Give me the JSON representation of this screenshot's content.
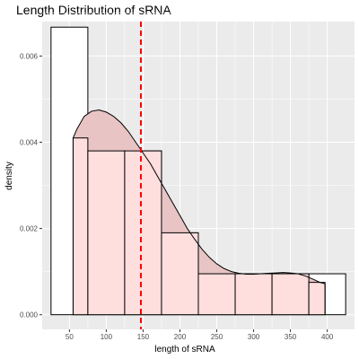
{
  "chart_data": {
    "type": "histogram",
    "title": "Length Distribution of sRNA",
    "xlabel": "length of sRNA",
    "ylabel": "density",
    "xlim": [
      13,
      437
    ],
    "ylim": [
      -0.00034,
      0.0068
    ],
    "x_ticks": [
      50,
      100,
      150,
      200,
      250,
      300,
      350,
      400
    ],
    "x_tick_labels": [
      "50",
      "100",
      "150",
      "200",
      "250",
      "300",
      "350",
      "400"
    ],
    "y_ticks": [
      0,
      0.002,
      0.004,
      0.006
    ],
    "y_tick_labels": [
      "0.000",
      "0.002",
      "0.004",
      "0.006"
    ],
    "grid": true,
    "legend": "none",
    "histogram_white": {
      "name": "",
      "bins": [
        {
          "x0": 25,
          "x1": 75,
          "density": 0.00667
        },
        {
          "x0": 75,
          "x1": 125,
          "density": 0.0038
        },
        {
          "x0": 125,
          "x1": 175,
          "density": 0.0038
        },
        {
          "x0": 175,
          "x1": 225,
          "density": 0.0019
        },
        {
          "x0": 225,
          "x1": 275,
          "density": 0.00095
        },
        {
          "x0": 275,
          "x1": 325,
          "density": 0.00095
        },
        {
          "x0": 325,
          "x1": 375,
          "density": 0.00095
        },
        {
          "x0": 375,
          "x1": 425,
          "density": 0.00095
        }
      ]
    },
    "histogram_pink": {
      "name": "",
      "bins": [
        {
          "x0": 55,
          "x1": 75,
          "density": 0.0041
        },
        {
          "x0": 75,
          "x1": 125,
          "density": 0.0038
        },
        {
          "x0": 125,
          "x1": 175,
          "density": 0.0038
        },
        {
          "x0": 175,
          "x1": 225,
          "density": 0.0019
        },
        {
          "x0": 225,
          "x1": 275,
          "density": 0.00095
        },
        {
          "x0": 275,
          "x1": 325,
          "density": 0.00095
        },
        {
          "x0": 325,
          "x1": 375,
          "density": 0.00095
        },
        {
          "x0": 375,
          "x1": 397,
          "density": 0.00075
        }
      ]
    },
    "density_curve": {
      "x": [
        55,
        60,
        70,
        80,
        90,
        100,
        110,
        120,
        130,
        140,
        150,
        160,
        170,
        180,
        190,
        200,
        210,
        220,
        230,
        240,
        250,
        260,
        270,
        280,
        290,
        300,
        310,
        320,
        330,
        340,
        350,
        360,
        370,
        380,
        390,
        397
      ],
      "y": [
        0.0041,
        0.0043,
        0.0046,
        0.00472,
        0.00475,
        0.0047,
        0.0046,
        0.00445,
        0.00425,
        0.004,
        0.00375,
        0.0035,
        0.0032,
        0.0029,
        0.0026,
        0.0023,
        0.002,
        0.00175,
        0.00152,
        0.00133,
        0.00118,
        0.00107,
        0.001,
        0.00096,
        0.00094,
        0.00094,
        0.00095,
        0.00096,
        0.00097,
        0.00098,
        0.00097,
        0.00095,
        0.0009,
        0.00083,
        0.00075,
        0.00072
      ]
    },
    "vline": {
      "x": 147,
      "color": "#ff0000",
      "style": "dashed"
    },
    "colors": {
      "panel_bg": "#ebebeb",
      "grid": "#ffffff",
      "white_fill": "#ffffff",
      "pink_fill": "#ffdede",
      "density_fill": "#e8c4c4",
      "outline": "#000000"
    }
  }
}
